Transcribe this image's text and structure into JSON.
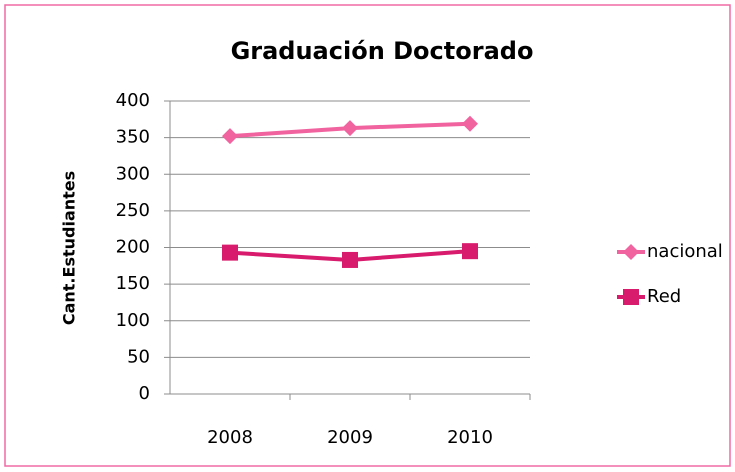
{
  "chart_data": {
    "type": "line",
    "title": "Graduación Doctorado",
    "y_label": "Cant.Estudiantes",
    "categories": [
      "2008",
      "2009",
      "2010"
    ],
    "series": [
      {
        "name": "nacional",
        "color": "#f0639f",
        "marker": "diamond",
        "values": [
          352,
          363,
          369
        ]
      },
      {
        "name": "Red",
        "color": "#d81b6c",
        "marker": "square",
        "values": [
          193,
          183,
          195
        ]
      }
    ],
    "ylim": [
      0,
      400
    ],
    "yticks": [
      0,
      50,
      100,
      150,
      200,
      250,
      300,
      350,
      400
    ],
    "grid": true,
    "legend": "right"
  }
}
